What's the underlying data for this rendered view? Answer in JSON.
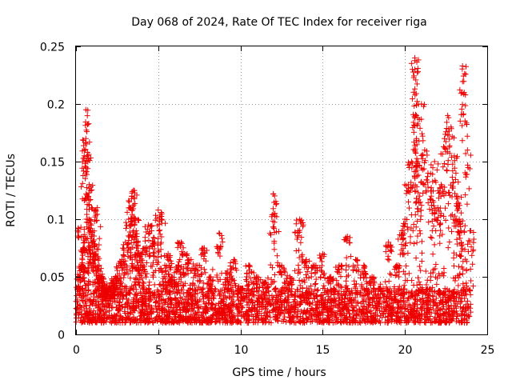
{
  "chart_data": {
    "type": "scatter",
    "title": "Day 068 of 2024, Rate Of TEC Index for receiver riga",
    "xlabel": "GPS time / hours",
    "ylabel": "ROTI / TECUs",
    "xlim": [
      0,
      25
    ],
    "ylim": [
      0,
      0.25
    ],
    "x_ticks": [
      "0",
      "5",
      "10",
      "15",
      "20",
      "25"
    ],
    "y_ticks": [
      "0",
      "0.05",
      "0.1",
      "0.15",
      "0.2",
      "0.25"
    ],
    "grid": true,
    "marker": "plus",
    "color": "#ee0000",
    "series": [
      {
        "x": [
          0.1,
          0.2,
          0.3,
          0.4,
          0.5,
          0.5,
          0.6,
          0.6,
          0.7,
          0.7,
          0.8,
          0.8,
          0.9,
          1.0,
          1.1,
          1.2,
          1.3,
          1.4,
          1.5,
          1.6,
          1.7,
          1.8,
          1.9,
          2.0,
          2.2,
          2.4,
          2.6,
          2.8,
          3.0,
          3.2,
          3.3,
          3.4,
          3.5,
          3.5,
          3.6,
          3.7,
          3.8,
          4.0,
          4.2,
          4.4,
          4.6,
          4.8,
          5.0,
          5.2,
          5.4,
          5.6,
          5.8,
          6.0,
          6.2,
          6.4,
          6.6,
          7.0,
          7.4,
          7.8,
          8.2,
          8.7,
          9.2,
          9.6,
          10.0,
          10.5,
          11.0,
          11.5,
          12.0,
          12.1,
          12.5,
          13.0,
          13.5,
          13.6,
          14.0,
          14.5,
          15.0,
          15.5,
          16.0,
          16.5,
          17.0,
          17.5,
          18.0,
          18.5,
          19.0,
          19.5,
          19.8,
          20.0,
          20.2,
          20.4,
          20.6,
          20.6,
          20.7,
          20.7,
          20.8,
          20.9,
          21.0,
          21.2,
          21.4,
          21.6,
          21.8,
          22.0,
          22.2,
          22.4,
          22.6,
          22.8,
          23.0,
          23.1,
          23.2,
          23.3,
          23.4,
          23.5,
          23.6,
          23.8,
          24.0
        ],
        "y": [
          0.052,
          0.04,
          0.093,
          0.06,
          0.075,
          0.155,
          0.195,
          0.17,
          0.158,
          0.12,
          0.13,
          0.1,
          0.09,
          0.08,
          0.082,
          0.07,
          0.11,
          0.06,
          0.05,
          0.045,
          0.04,
          0.038,
          0.035,
          0.04,
          0.045,
          0.05,
          0.06,
          0.065,
          0.08,
          0.1,
          0.11,
          0.12,
          0.125,
          0.09,
          0.1,
          0.085,
          0.07,
          0.06,
          0.075,
          0.095,
          0.09,
          0.08,
          0.108,
          0.1,
          0.06,
          0.07,
          0.05,
          0.045,
          0.06,
          0.08,
          0.07,
          0.065,
          0.06,
          0.075,
          0.05,
          0.088,
          0.055,
          0.065,
          0.04,
          0.06,
          0.05,
          0.045,
          0.122,
          0.105,
          0.06,
          0.05,
          0.09,
          0.1,
          0.065,
          0.06,
          0.07,
          0.05,
          0.06,
          0.085,
          0.065,
          0.06,
          0.05,
          0.04,
          0.08,
          0.06,
          0.09,
          0.1,
          0.13,
          0.15,
          0.24,
          0.23,
          0.19,
          0.17,
          0.15,
          0.12,
          0.2,
          0.16,
          0.14,
          0.12,
          0.15,
          0.11,
          0.13,
          0.17,
          0.19,
          0.18,
          0.155,
          0.14,
          0.12,
          0.1,
          0.09,
          0.233,
          0.21,
          0.16,
          0.09
        ],
        "baseline_band": [
          0.01,
          0.04
        ]
      }
    ]
  }
}
